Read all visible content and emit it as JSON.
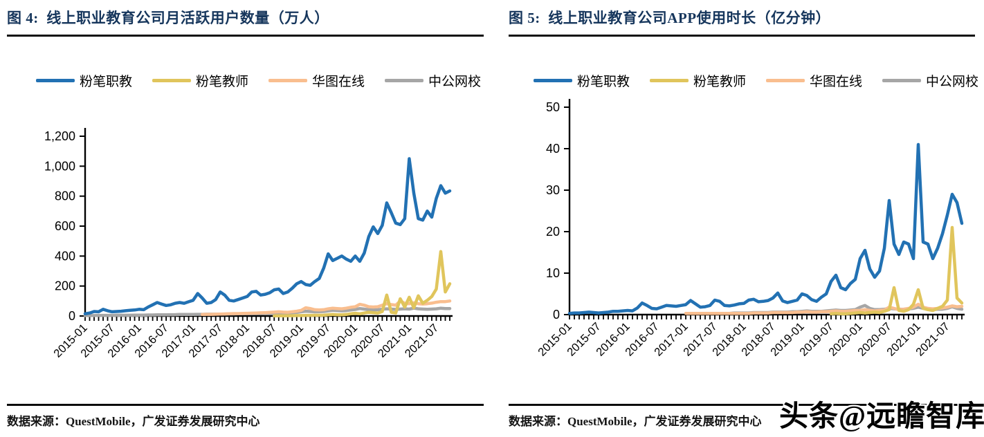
{
  "watermark": "头条@远瞻智库",
  "colors": {
    "title_navy": "#16365C",
    "rule_black": "#0c0c0c",
    "series_blue": "#2271B3",
    "series_yellow": "#E0C55C",
    "series_orange": "#F9BE8F",
    "series_gray": "#A6A6A6",
    "axis_black": "#000000"
  },
  "panels": [
    {
      "title": "图 4:  线上职业教育公司月活跃用户数量（万人）",
      "source": "数据来源：QuestMobile，广发证券发展研究中心"
    },
    {
      "title": "图 5:  线上职业教育公司APP使用时长（亿分钟）",
      "source": "数据来源：QuestMobile，广发证券发展研究中心"
    }
  ],
  "chart_data": [
    {
      "type": "line",
      "title": "线上职业教育公司月活跃用户数量（万人）",
      "unit": "万人",
      "x_start": "2015-01",
      "x_end": "2021-10",
      "x_freq": "monthly",
      "x_tick_every": 6,
      "x_tick_labels": [
        "2015-01",
        "2015-07",
        "2016-01",
        "2016-07",
        "2017-01",
        "2017-07",
        "2018-01",
        "2018-07",
        "2019-01",
        "2019-07",
        "2020-01",
        "2020-07",
        "2021-01",
        "2021-07"
      ],
      "ylim": [
        0,
        1200
      ],
      "yticks": [
        0,
        200,
        400,
        600,
        800,
        1000,
        1200
      ],
      "grid": false,
      "legend_position": "top",
      "series": [
        {
          "name": "粉笔职教",
          "color": "#2271B3",
          "values": [
            15,
            20,
            30,
            28,
            45,
            35,
            28,
            30,
            32,
            35,
            38,
            40,
            45,
            42,
            60,
            75,
            90,
            80,
            70,
            75,
            85,
            90,
            85,
            95,
            105,
            150,
            120,
            85,
            90,
            110,
            160,
            140,
            105,
            100,
            110,
            120,
            130,
            160,
            165,
            140,
            145,
            155,
            175,
            180,
            150,
            160,
            185,
            215,
            230,
            210,
            205,
            230,
            250,
            320,
            415,
            370,
            385,
            400,
            380,
            365,
            400,
            365,
            420,
            530,
            595,
            550,
            605,
            755,
            690,
            620,
            610,
            650,
            1050,
            820,
            650,
            640,
            700,
            660,
            785,
            870,
            820,
            835
          ]
        },
        {
          "name": "粉笔教师",
          "color": "#E0C55C",
          "values": [
            null,
            null,
            null,
            null,
            null,
            null,
            null,
            null,
            null,
            null,
            null,
            null,
            null,
            null,
            null,
            null,
            null,
            null,
            null,
            null,
            null,
            null,
            null,
            null,
            null,
            null,
            null,
            null,
            null,
            null,
            null,
            null,
            null,
            null,
            null,
            null,
            null,
            null,
            null,
            null,
            null,
            null,
            1,
            1,
            1,
            2,
            2,
            3,
            3,
            4,
            4,
            5,
            5,
            6,
            8,
            10,
            8,
            8,
            10,
            15,
            18,
            15,
            20,
            25,
            22,
            20,
            30,
            140,
            25,
            20,
            115,
            60,
            125,
            55,
            135,
            85,
            105,
            130,
            180,
            430,
            160,
            215
          ]
        },
        {
          "name": "华图在线",
          "color": "#F9BE8F",
          "values": [
            null,
            null,
            null,
            null,
            null,
            null,
            null,
            null,
            null,
            null,
            null,
            null,
            null,
            null,
            null,
            null,
            null,
            null,
            null,
            null,
            null,
            null,
            null,
            null,
            null,
            null,
            10,
            11,
            11,
            12,
            13,
            14,
            15,
            16,
            16,
            17,
            18,
            19,
            20,
            21,
            22,
            24,
            26,
            28,
            26,
            25,
            28,
            32,
            38,
            55,
            50,
            42,
            40,
            42,
            48,
            52,
            50,
            48,
            52,
            58,
            62,
            78,
            72,
            62,
            60,
            62,
            72,
            82,
            76,
            72,
            100,
            85,
            82,
            88,
            82,
            80,
            82,
            86,
            92,
            96,
            96,
            100
          ]
        },
        {
          "name": "中公网校",
          "color": "#A6A6A6",
          "values": [
            3,
            3,
            3,
            4,
            4,
            4,
            4,
            5,
            5,
            5,
            5,
            6,
            6,
            6,
            7,
            7,
            8,
            8,
            8,
            9,
            9,
            10,
            10,
            10,
            10,
            11,
            11,
            12,
            12,
            12,
            13,
            13,
            14,
            14,
            15,
            15,
            16,
            16,
            17,
            17,
            18,
            18,
            19,
            20,
            20,
            21,
            22,
            24,
            28,
            32,
            30,
            28,
            29,
            30,
            34,
            38,
            36,
            34,
            36,
            40,
            44,
            50,
            46,
            42,
            40,
            42,
            45,
            48,
            46,
            44,
            46,
            48,
            46,
            52,
            48,
            46,
            45,
            46,
            48,
            52,
            50,
            50
          ]
        }
      ]
    },
    {
      "type": "line",
      "title": "线上职业教育公司APP使用时长（亿分钟）",
      "unit": "亿分钟",
      "x_start": "2015-01",
      "x_end": "2021-10",
      "x_freq": "monthly",
      "x_tick_every": 6,
      "x_tick_labels": [
        "2015-01",
        "2015-07",
        "2016-01",
        "2016-07",
        "2017-01",
        "2017-07",
        "2018-01",
        "2018-07",
        "2019-01",
        "2019-07",
        "2020-01",
        "2020-07",
        "2021-01",
        "2021-07"
      ],
      "ylim": [
        0,
        50
      ],
      "yticks": [
        0,
        10,
        20,
        30,
        40,
        50
      ],
      "grid": false,
      "legend_position": "top",
      "series": [
        {
          "name": "粉笔职教",
          "color": "#2271B3",
          "values": [
            0.3,
            0.4,
            0.4,
            0.5,
            0.6,
            0.5,
            0.4,
            0.5,
            0.6,
            0.8,
            0.8,
            0.9,
            1.0,
            0.9,
            1.6,
            2.8,
            2.2,
            1.5,
            1.4,
            1.8,
            2.2,
            2.1,
            2.0,
            2.2,
            2.4,
            3.4,
            2.6,
            1.8,
            1.9,
            2.2,
            3.5,
            3.2,
            2.2,
            2.1,
            2.3,
            2.6,
            2.7,
            3.5,
            3.7,
            3.1,
            3.2,
            3.4,
            4.0,
            5.2,
            3.3,
            2.9,
            3.2,
            3.5,
            5.0,
            4.6,
            3.6,
            3.2,
            4.2,
            5.0,
            8.0,
            9.5,
            6.5,
            6.0,
            7.5,
            8.5,
            13.5,
            15.5,
            11.0,
            9.0,
            10.5,
            16.0,
            27.5,
            17.0,
            14.5,
            17.5,
            17.0,
            13.5,
            41.0,
            17.5,
            17.0,
            13.5,
            16.0,
            19.5,
            24.0,
            29.0,
            27.0,
            22.0
          ]
        },
        {
          "name": "粉笔教师",
          "color": "#E0C55C",
          "values": [
            null,
            null,
            null,
            null,
            null,
            null,
            null,
            null,
            null,
            null,
            null,
            null,
            null,
            null,
            null,
            null,
            null,
            null,
            null,
            null,
            null,
            null,
            null,
            null,
            null,
            null,
            null,
            null,
            null,
            null,
            null,
            null,
            null,
            null,
            null,
            null,
            null,
            null,
            null,
            null,
            null,
            null,
            null,
            null,
            null,
            null,
            null,
            null,
            null,
            null,
            null,
            null,
            null,
            null,
            0.2,
            0.3,
            0.2,
            0.2,
            0.3,
            0.4,
            0.5,
            0.4,
            0.5,
            0.6,
            0.5,
            0.8,
            1.2,
            6.5,
            1.0,
            0.8,
            1.2,
            2.5,
            6.0,
            1.5,
            1.2,
            1.0,
            1.5,
            2.0,
            3.5,
            21.0,
            4.0,
            2.8
          ]
        },
        {
          "name": "华图在线",
          "color": "#F9BE8F",
          "values": [
            null,
            null,
            null,
            null,
            null,
            null,
            null,
            null,
            null,
            null,
            null,
            null,
            null,
            null,
            null,
            null,
            null,
            null,
            null,
            null,
            null,
            null,
            null,
            null,
            0.3,
            0.3,
            0.3,
            0.3,
            0.3,
            0.3,
            0.3,
            0.3,
            0.3,
            0.3,
            0.3,
            0.3,
            0.3,
            0.3,
            0.4,
            0.4,
            0.4,
            0.4,
            0.5,
            0.5,
            0.5,
            0.5,
            0.5,
            0.6,
            0.6,
            0.7,
            0.6,
            0.6,
            0.7,
            0.7,
            0.8,
            0.9,
            0.8,
            0.8,
            0.9,
            1.0,
            1.0,
            1.2,
            1.0,
            0.9,
            1.0,
            1.1,
            1.8,
            1.5,
            1.2,
            1.3,
            1.5,
            1.8,
            2.5,
            1.8,
            1.5,
            1.4,
            1.5,
            1.6,
            1.8,
            2.1,
            1.9,
            2.0
          ]
        },
        {
          "name": "中公网校",
          "color": "#A6A6A6",
          "values": [
            null,
            null,
            null,
            null,
            null,
            null,
            null,
            null,
            null,
            null,
            null,
            null,
            null,
            null,
            null,
            null,
            null,
            null,
            null,
            null,
            null,
            null,
            null,
            null,
            null,
            null,
            null,
            null,
            null,
            null,
            0.3,
            0.3,
            0.3,
            0.3,
            0.4,
            0.4,
            0.4,
            0.4,
            0.5,
            0.5,
            0.5,
            0.5,
            0.6,
            0.6,
            0.6,
            0.6,
            0.7,
            0.7,
            0.8,
            0.9,
            0.8,
            0.8,
            0.8,
            0.9,
            1.0,
            1.1,
            1.0,
            1.0,
            1.1,
            1.2,
            1.8,
            2.2,
            1.5,
            1.2,
            1.2,
            1.3,
            1.5,
            1.4,
            1.3,
            1.3,
            1.4,
            1.5,
            1.8,
            1.5,
            1.4,
            1.2,
            1.3,
            1.3,
            1.5,
            1.9,
            1.5,
            1.3
          ]
        }
      ]
    }
  ]
}
